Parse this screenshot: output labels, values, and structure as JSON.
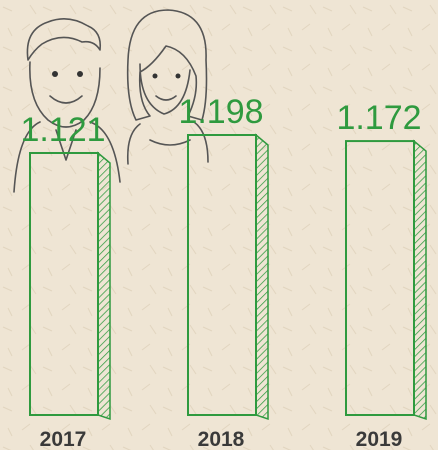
{
  "chart_data": {
    "type": "bar",
    "categories": [
      "2017",
      "2018",
      "2019"
    ],
    "values": [
      1.121,
      1.198,
      1.172
    ],
    "color": "#2f9a3f"
  }
}
